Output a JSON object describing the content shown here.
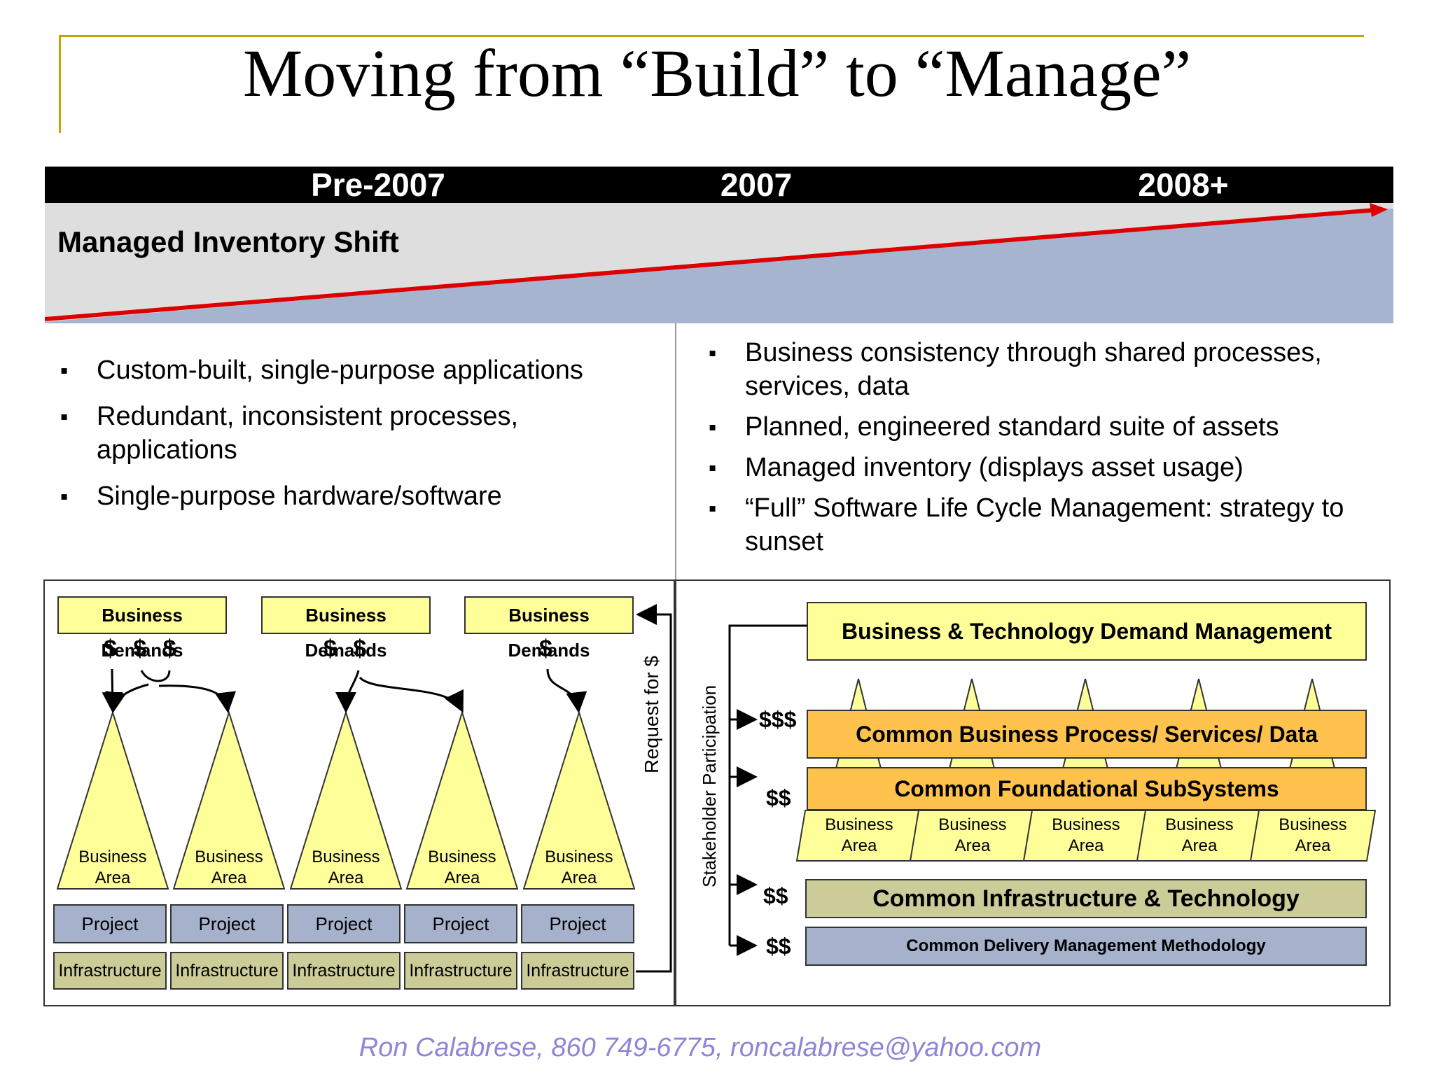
{
  "title": "Moving from “Build” to “Manage”",
  "timeline": {
    "labels": [
      "Pre-2007",
      "2007",
      "2008+"
    ],
    "shift_label": "Managed Inventory Shift"
  },
  "left_bullets": [
    "Custom-built, single-purpose applications",
    "Redundant, inconsistent processes, applications",
    "Single-purpose hardware/software"
  ],
  "right_bullets": [
    "Business consistency through shared processes, services, data",
    "Planned, engineered standard suite of assets",
    "Managed inventory (displays asset usage)",
    "“Full” Software Life Cycle Management: strategy  to sunset"
  ],
  "left_diagram": {
    "demands": [
      "Business Demands",
      "Business Demands",
      "Business Demands"
    ],
    "dollars": [
      "$ $ $",
      "$ $",
      "$"
    ],
    "business_area": [
      "Business",
      "Area"
    ],
    "project_label": "Project",
    "infra_label": "Infrastructure",
    "request_label": "Request for $"
  },
  "right_diagram": {
    "demand_mgmt": "Business & Technology Demand Management",
    "stakeholder_label": "Stakeholder Participation",
    "common_bp": "Common Business Process/ Services/ Data",
    "common_found": "Common Foundational SubSystems",
    "common_infra": "Common Infrastructure & Technology",
    "common_delivery": "Common Delivery Management Methodology",
    "dollars": [
      "$$$",
      "$$",
      "$$",
      "$$"
    ],
    "business_area": [
      "Business",
      "Area"
    ]
  },
  "colors": {
    "yellow": "#ffff99",
    "orange": "#ffc34d",
    "project_blue": "#a6b1cc",
    "infra_olive": "#cccc99",
    "accent_red": "#dd0000",
    "gold_rule": "#c8a000",
    "footer_purple": "#8c86d6"
  },
  "footer": "Ron Calabrese, 860 749-6775, roncalabrese@yahoo.com"
}
